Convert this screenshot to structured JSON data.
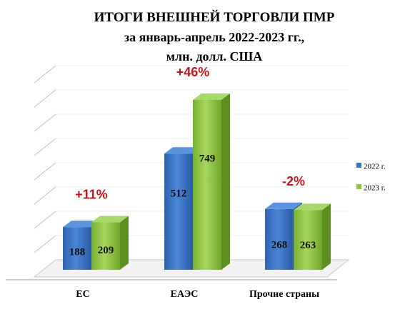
{
  "chart_data": {
    "type": "bar",
    "title_lines": [
      "ИТОГИ ВНЕШНЕЙ ТОРГОВЛИ ПМР",
      "за январь-апрель 2022-2023 гг.,",
      "млн. долл. США"
    ],
    "categories": [
      "ЕС",
      "ЕАЭС",
      "Прочие страны"
    ],
    "series": [
      {
        "name": "2022  г.",
        "values": [
          188,
          512,
          268
        ],
        "color": "#3a74c4"
      },
      {
        "name": "2023  г.",
        "values": [
          209,
          749,
          263
        ],
        "color": "#8dc63f"
      }
    ],
    "annotations": [
      "+11%",
      "+46%",
      "-2%"
    ],
    "annotation_color": "#c0161c",
    "ylim": [
      0,
      800
    ],
    "grid": true,
    "legend_position": "right",
    "three_d": true
  }
}
